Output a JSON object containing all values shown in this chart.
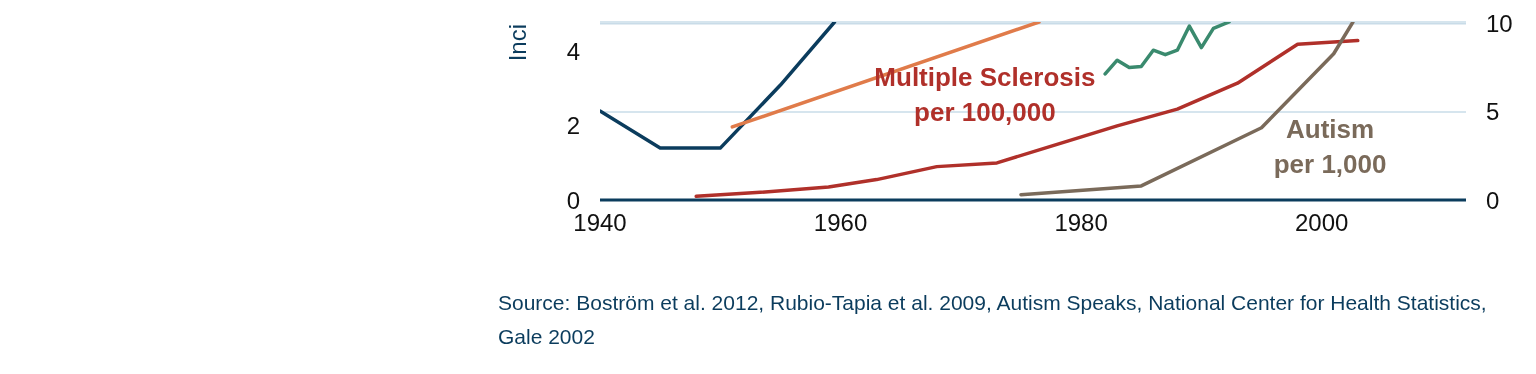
{
  "chart_data": {
    "type": "line",
    "ylabel": "Inci",
    "xlim": [
      1940,
      2012
    ],
    "xticks": [
      1940,
      1960,
      1980,
      2000
    ],
    "ylim": [
      0,
      4.8
    ],
    "yticks": [
      0,
      2,
      4
    ],
    "y2lim": [
      0,
      10.1
    ],
    "y2ticks": [
      0,
      5,
      10
    ],
    "grid": true,
    "marker": "none",
    "line_style": "solid",
    "series": [
      {
        "color": "#0b3c5d",
        "x": [
          1940,
          1945,
          1950,
          1955,
          1959.5
        ],
        "values": [
          2.4,
          1.4,
          1.4,
          3.1,
          4.8
        ]
      },
      {
        "color": "#e07b4a",
        "x": [
          1951,
          1976.5
        ],
        "values": [
          1.97,
          4.8
        ]
      },
      {
        "color": "#3a8a6e",
        "x": [
          1982,
          1983,
          1984,
          1985,
          1986,
          1987,
          1988,
          1989,
          1990,
          1991,
          1992.3
        ],
        "values": [
          3.4,
          3.77,
          3.57,
          3.6,
          4.04,
          3.92,
          4.04,
          4.69,
          4.11,
          4.63,
          4.8
        ]
      },
      {
        "name": "Multiple Sclerosis per 100,000",
        "color": "#b0302a",
        "x": [
          1948,
          1953,
          1959,
          1963,
          1968,
          1973,
          1978,
          1983,
          1988,
          1993,
          1998,
          2003
        ],
        "values": [
          0.1,
          0.2,
          0.35,
          0.55,
          0.9,
          1.0,
          1.5,
          2.0,
          2.45,
          3.15,
          4.2,
          4.3
        ]
      },
      {
        "name": "Autism per 1,000",
        "color": "#7a6a5a",
        "axis": "y2",
        "x": [
          1975,
          1985,
          1995,
          2001,
          2002.6
        ],
        "values": [
          0.3,
          0.8,
          4.1,
          8.3,
          10.1
        ]
      }
    ],
    "annotations": [
      "Source: Boström et al. 2012, Rubio-Tapia et al. 2009, Autism Speaks, National Center for Health Statistics, Gale 2002"
    ]
  }
}
